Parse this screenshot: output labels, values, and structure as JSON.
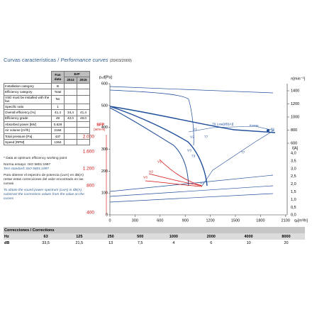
{
  "header": {
    "title_es": "Curvas características",
    "separator": "/",
    "title_en": "Performance curves",
    "date": "(20/03/2009)"
  },
  "spec_table": {
    "head": {
      "fan": "Fan data",
      "erp": "ErP",
      "y2013": "2013",
      "y2015": "2015"
    },
    "rows": [
      [
        "Installation category",
        "B"
      ],
      [
        "Efficiency category",
        "Total"
      ],
      [
        "VSD must be installed with the fan",
        "No"
      ],
      [
        "Specific ratio",
        "1"
      ],
      [
        "Overall efficiency [%]",
        "41,4",
        "34,4",
        "41,4"
      ],
      [
        "Efficiency grade",
        "49",
        "42,0",
        "49,0"
      ],
      [
        "Absorbed power [kW]",
        "0,629"
      ],
      [
        "Air volume [m³/h]",
        "2184"
      ],
      [
        "Total pressure [Pa]",
        "437"
      ],
      [
        "Speed [RPM]",
        "1364"
      ]
    ]
  },
  "notes": {
    "optimum": "* Data at optimum efficiency working point",
    "norma": "Norma ensayo: ISO 5801:1997",
    "standard": "Test standard: ISO 5801:1997",
    "es": "Para obtener el espectro de potencia (LwA) en dB(A) restar estas correcciones del valor encontrado en las curvas",
    "en": "To obtain the sound power spectrum (LwA) in dB(A), substract the corrections values from the value on the curves"
  },
  "chart": {
    "pressure_label": "pₛd[Pa]",
    "pressure_ticks": [
      "600",
      "500",
      "400",
      "300",
      "200",
      "100",
      "0"
    ],
    "sfp_label": "SFP",
    "sfp_unit": "[W/m³/s]",
    "sfp_ticks": [
      "2.000",
      "1.600",
      "1.200",
      "800",
      "400"
    ],
    "speed_label": "n[min⁻¹]",
    "speed_ticks": [
      "1400",
      "1200",
      "1000",
      "800",
      "600"
    ],
    "current_label": "I[A]",
    "current_ticks": [
      "4,0",
      "3,5",
      "3,0",
      "2,5",
      "2,0",
      "1,5",
      "1,0",
      "0,5",
      "0,0"
    ],
    "x_label": "qᵥ[m³/h]",
    "x_ticks": [
      "0",
      "300",
      "600",
      "900",
      "1200",
      "1500",
      "1800",
      "2100"
    ],
    "curve_labels": [
      "V1",
      "79 Lwa[dB(A)]",
      "V2",
      "77",
      "Kerax",
      "81",
      "V3",
      "73",
      "77",
      "V1",
      "V2",
      "V3",
      "V3"
    ]
  },
  "corrections": {
    "title": "Correcciones / Corrections",
    "hz_label": "Hz",
    "hz": [
      "63",
      "125",
      "250",
      "500",
      "1000",
      "2000",
      "4000",
      "8000"
    ],
    "db_label": "dB",
    "db": [
      "33,5",
      "21,5",
      "13",
      "7,5",
      "4",
      "6",
      "10",
      "20"
    ]
  }
}
